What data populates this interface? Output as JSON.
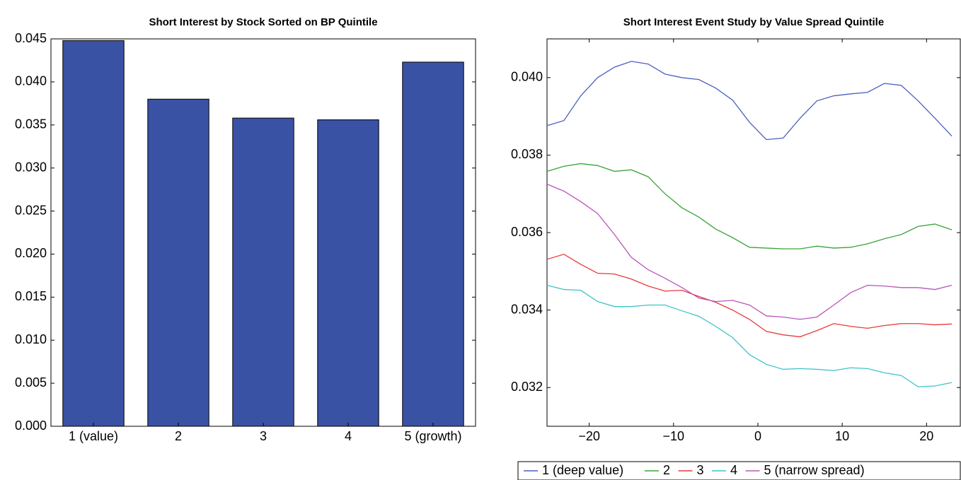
{
  "chart_data": [
    {
      "type": "bar",
      "title": "Short Interest by Stock Sorted on BP Quintile",
      "categories": [
        "1 (value)",
        "2",
        "3",
        "4",
        "5 (growth)"
      ],
      "values": [
        0.0448,
        0.038,
        0.0358,
        0.0356,
        0.0423
      ],
      "color": "#3a52a3",
      "ylim": [
        0,
        0.045
      ],
      "yticks": [
        {
          "value": 0,
          "label": "0.000"
        },
        {
          "value": 0.005,
          "label": "0.005"
        },
        {
          "value": 0.01,
          "label": "0.010"
        },
        {
          "value": 0.015,
          "label": "0.015"
        },
        {
          "value": 0.02,
          "label": "0.020"
        },
        {
          "value": 0.025,
          "label": "0.025"
        },
        {
          "value": 0.03,
          "label": "0.030"
        },
        {
          "value": 0.035,
          "label": "0.035"
        },
        {
          "value": 0.04,
          "label": "0.040"
        },
        {
          "value": 0.045,
          "label": "0.045"
        }
      ],
      "grid": false
    },
    {
      "type": "line",
      "title": "Short Interest Event Study by Value Spread Quintile",
      "x": [
        -25,
        -23,
        -21,
        -19,
        -17,
        -15,
        -13,
        -11,
        -9,
        -7,
        -5,
        -3,
        -1,
        1,
        3,
        5,
        7,
        9,
        11,
        13,
        15,
        17,
        19,
        21,
        23
      ],
      "series": [
        {
          "name": "1 (deep value)",
          "color": "#4b5fc0",
          "values": [
            0.03876,
            0.03889,
            0.03953,
            0.04,
            0.04027,
            0.04042,
            0.04035,
            0.04009,
            0.04,
            0.03995,
            0.03973,
            0.03942,
            0.03885,
            0.0384,
            0.03844,
            0.03895,
            0.0394,
            0.03953,
            0.03958,
            0.03962,
            0.03985,
            0.0398,
            0.0394,
            0.03895,
            0.03849
          ]
        },
        {
          "name": "2",
          "color": "#3aa33a",
          "values": [
            0.03758,
            0.03771,
            0.03778,
            0.03773,
            0.03758,
            0.03762,
            0.03744,
            0.037,
            0.03664,
            0.0364,
            0.03609,
            0.03587,
            0.03562,
            0.0356,
            0.03558,
            0.03558,
            0.03565,
            0.0356,
            0.03562,
            0.03571,
            0.03584,
            0.03595,
            0.03616,
            0.03622,
            0.03607
          ]
        },
        {
          "name": "3",
          "color": "#e83a3a",
          "values": [
            0.03531,
            0.03544,
            0.03518,
            0.03495,
            0.03493,
            0.0348,
            0.03462,
            0.03449,
            0.03451,
            0.03435,
            0.0342,
            0.034,
            0.03376,
            0.03345,
            0.03336,
            0.03331,
            0.03347,
            0.03365,
            0.03358,
            0.03353,
            0.0336,
            0.03365,
            0.03365,
            0.03362,
            0.03364
          ]
        },
        {
          "name": "4",
          "color": "#3fc4c8",
          "values": [
            0.03464,
            0.03453,
            0.03451,
            0.03422,
            0.03409,
            0.03409,
            0.03413,
            0.03413,
            0.03398,
            0.03384,
            0.03358,
            0.03329,
            0.03285,
            0.0326,
            0.03247,
            0.03249,
            0.03247,
            0.03244,
            0.03251,
            0.03249,
            0.03238,
            0.03231,
            0.03202,
            0.03204,
            0.03213
          ]
        },
        {
          "name": "5 (narrow spread)",
          "color": "#b856b8",
          "values": [
            0.03725,
            0.03707,
            0.0368,
            0.03649,
            0.03595,
            0.03536,
            0.03504,
            0.03482,
            0.03458,
            0.03431,
            0.03422,
            0.03425,
            0.03413,
            0.03385,
            0.03382,
            0.03376,
            0.03382,
            0.03413,
            0.03445,
            0.03464,
            0.03462,
            0.03458,
            0.03458,
            0.03453,
            0.03464
          ]
        }
      ],
      "xlim": [
        -25,
        24
      ],
      "ylim": [
        0.031,
        0.041
      ],
      "xticks": [
        {
          "value": -20,
          "label": "−20"
        },
        {
          "value": -10,
          "label": "−10"
        },
        0,
        10,
        20
      ],
      "yticks": [
        {
          "value": 0.032,
          "label": "0.032"
        },
        {
          "value": 0.034,
          "label": "0.034"
        },
        {
          "value": 0.036,
          "label": "0.036"
        },
        {
          "value": 0.038,
          "label": "0.038"
        },
        {
          "value": 0.04,
          "label": "0.040"
        }
      ],
      "grid": false,
      "legend": "below"
    }
  ]
}
